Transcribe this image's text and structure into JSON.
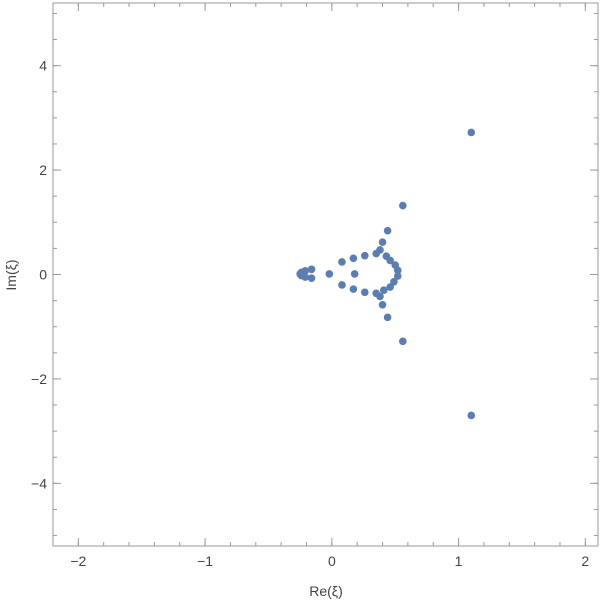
{
  "chart_data": {
    "type": "scatter",
    "title": "",
    "xlabel": "Re(ξ)",
    "ylabel": "Im(ξ)",
    "xlim": [
      -2.2,
      2.1
    ],
    "ylim": [
      -5.2,
      5.2
    ],
    "xticks": [
      -2,
      -1,
      0,
      1,
      2
    ],
    "xtick_labels": [
      "−2",
      "−1",
      "0",
      "1",
      "2"
    ],
    "yticks": [
      -4,
      -2,
      0,
      2,
      4
    ],
    "ytick_labels": [
      "−4",
      "−2",
      "0",
      "2",
      "4"
    ],
    "minor_tick_step_x": 0.2,
    "minor_tick_step_y": 0.5,
    "grid": false,
    "marker_color": "#5b7db2",
    "series": [
      {
        "points": [
          [
            1.1,
            2.72
          ],
          [
            1.1,
            -2.7
          ],
          [
            0.56,
            1.32
          ],
          [
            0.56,
            -1.28
          ],
          [
            0.44,
            0.84
          ],
          [
            0.44,
            -0.82
          ],
          [
            0.4,
            0.62
          ],
          [
            0.4,
            -0.58
          ],
          [
            0.38,
            0.47
          ],
          [
            0.38,
            -0.42
          ],
          [
            0.35,
            0.4
          ],
          [
            0.35,
            -0.36
          ],
          [
            0.43,
            0.35
          ],
          [
            0.41,
            -0.3
          ],
          [
            0.46,
            0.27
          ],
          [
            0.46,
            -0.24
          ],
          [
            0.5,
            0.18
          ],
          [
            0.49,
            -0.14
          ],
          [
            0.52,
            0.08
          ],
          [
            0.52,
            -0.03
          ],
          [
            0.26,
            0.36
          ],
          [
            0.26,
            -0.34
          ],
          [
            0.17,
            0.31
          ],
          [
            0.17,
            -0.28
          ],
          [
            0.08,
            0.24
          ],
          [
            0.08,
            -0.2
          ],
          [
            0.18,
            0.01
          ],
          [
            -0.02,
            0.01
          ],
          [
            -0.16,
            0.1
          ],
          [
            -0.16,
            -0.07
          ],
          [
            -0.21,
            0.07
          ],
          [
            -0.21,
            -0.05
          ],
          [
            -0.24,
            0.04
          ],
          [
            -0.24,
            -0.02
          ],
          [
            -0.25,
            0.01
          ]
        ]
      }
    ]
  }
}
